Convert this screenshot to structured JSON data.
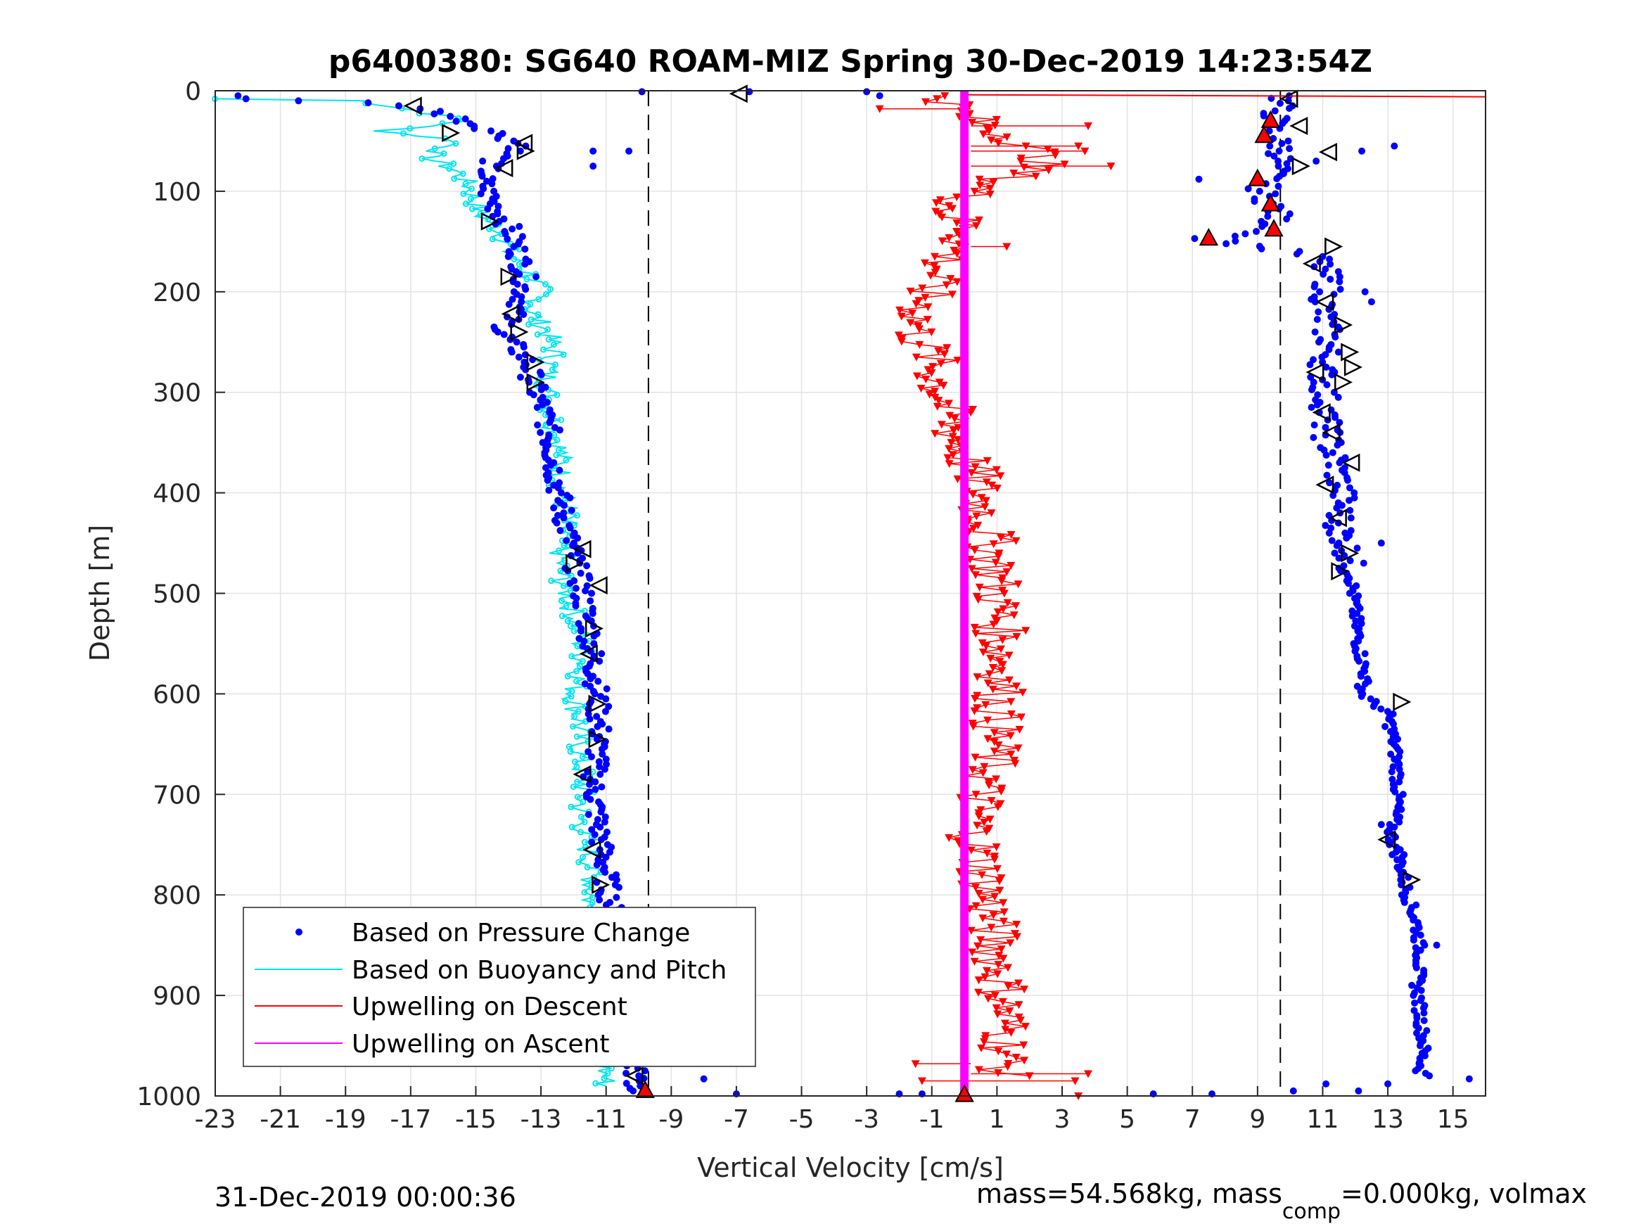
{
  "chart_data": {
    "type": "scatter",
    "title": "p6400380: SG640 ROAM-MIZ Spring 30-Dec-2019 14:23:54Z",
    "xlabel": "Vertical Velocity [cm/s]",
    "ylabel": "Depth [m]",
    "xlim": [
      -23,
      16
    ],
    "ylim": [
      1000,
      0
    ],
    "y_reversed": true,
    "grid": true,
    "xticks": [
      -23,
      -21,
      -19,
      -17,
      -15,
      -13,
      -11,
      -9,
      -7,
      -5,
      -3,
      -1,
      1,
      3,
      5,
      7,
      9,
      11,
      13,
      15
    ],
    "yticks": [
      0,
      100,
      200,
      300,
      400,
      500,
      600,
      700,
      800,
      900,
      1000
    ],
    "vlines": [
      -9.7,
      9.7
    ],
    "legend": {
      "placement": "bottom-left",
      "entries": [
        "Based on Pressure Change",
        "Based on Buoyancy and Pitch",
        "Upwelling on Descent",
        "Upwelling on Ascent"
      ]
    },
    "series": [
      {
        "name": "Based on Pressure Change",
        "color": "#0000ff",
        "profile_descent": [
          [
            -22,
            8
          ],
          [
            -18.5,
            12
          ],
          [
            -16.5,
            18
          ],
          [
            -15.5,
            28
          ],
          [
            -14.5,
            40
          ],
          [
            -13.5,
            55
          ],
          [
            -14.5,
            70
          ],
          [
            -14.8,
            90
          ],
          [
            -14.5,
            110
          ],
          [
            -14,
            135
          ],
          [
            -13.7,
            160
          ],
          [
            -13.5,
            185
          ],
          [
            -13.6,
            210
          ],
          [
            -14.2,
            240
          ],
          [
            -13.4,
            270
          ],
          [
            -13.2,
            295
          ],
          [
            -12.8,
            330
          ],
          [
            -12.6,
            370
          ],
          [
            -12.4,
            410
          ],
          [
            -12.1,
            450
          ],
          [
            -11.8,
            490
          ],
          [
            -11.5,
            540
          ],
          [
            -11.3,
            590
          ],
          [
            -11.2,
            640
          ],
          [
            -11.4,
            690
          ],
          [
            -11.2,
            740
          ],
          [
            -10.9,
            800
          ],
          [
            -10.6,
            860
          ],
          [
            -10.3,
            910
          ],
          [
            -10.2,
            960
          ],
          [
            -10.0,
            995
          ]
        ],
        "profile_ascent": [
          [
            9.8,
            5
          ],
          [
            9.6,
            20
          ],
          [
            9.4,
            40
          ],
          [
            9.8,
            60
          ],
          [
            9.5,
            80
          ],
          [
            9.1,
            100
          ],
          [
            9.6,
            120
          ],
          [
            9.4,
            140
          ],
          [
            7.5,
            147
          ],
          [
            10.8,
            165
          ],
          [
            11.2,
            190
          ],
          [
            11.0,
            220
          ],
          [
            11.2,
            250
          ],
          [
            11.0,
            280
          ],
          [
            11.1,
            310
          ],
          [
            11.1,
            340
          ],
          [
            11.4,
            370
          ],
          [
            11.6,
            400
          ],
          [
            11.5,
            430
          ],
          [
            11.8,
            460
          ],
          [
            11.9,
            490
          ],
          [
            12.0,
            520
          ],
          [
            12.1,
            550
          ],
          [
            12.3,
            580
          ],
          [
            12.2,
            600
          ],
          [
            13.0,
            620
          ],
          [
            13.2,
            650
          ],
          [
            13.3,
            680
          ],
          [
            13.3,
            710
          ],
          [
            13.1,
            740
          ],
          [
            13.4,
            770
          ],
          [
            13.6,
            800
          ],
          [
            13.9,
            830
          ],
          [
            14.0,
            860
          ],
          [
            13.9,
            890
          ],
          [
            14.0,
            920
          ],
          [
            14.1,
            950
          ],
          [
            14.0,
            975
          ],
          [
            14.2,
            980
          ]
        ],
        "outliers": [
          [
            -22.3,
            5
          ],
          [
            -9.9,
            1
          ],
          [
            -6.6,
            1
          ],
          [
            -11.4,
            60
          ],
          [
            -10.3,
            60
          ],
          [
            -11.4,
            75
          ],
          [
            -9.1,
            922
          ],
          [
            -8.4,
            953
          ],
          [
            -8.0,
            983
          ],
          [
            -7.0,
            998
          ],
          [
            -2.0,
            998
          ],
          [
            -1.3,
            998
          ],
          [
            5.8,
            998
          ],
          [
            7.6,
            998
          ],
          [
            10.1,
            995
          ],
          [
            11.1,
            988
          ],
          [
            12.1,
            995
          ],
          [
            13.0,
            988
          ],
          [
            15.5,
            983
          ],
          [
            14.5,
            850
          ],
          [
            -3,
            1
          ],
          [
            -2.6,
            5
          ],
          [
            10.8,
            70
          ],
          [
            12.2,
            60
          ],
          [
            13.2,
            55
          ],
          [
            7.2,
            88
          ],
          [
            12.3,
            200
          ],
          [
            12.5,
            210
          ],
          [
            11.2,
            440
          ],
          [
            12.8,
            450
          ],
          [
            13.5,
            760
          ],
          [
            12.8,
            730
          ]
        ]
      },
      {
        "name": "Based on Buoyancy and Pitch",
        "color": "#00e5ee",
        "profile": [
          [
            -23,
            8
          ],
          [
            -18.5,
            10
          ],
          [
            -16.8,
            20
          ],
          [
            -15.2,
            30
          ],
          [
            -17.8,
            40
          ],
          [
            -15.5,
            50
          ],
          [
            -16.5,
            65
          ],
          [
            -15.6,
            80
          ],
          [
            -15.2,
            95
          ],
          [
            -15.0,
            110
          ],
          [
            -14.8,
            125
          ],
          [
            -14.2,
            140
          ],
          [
            -14.0,
            160
          ],
          [
            -13.4,
            180
          ],
          [
            -13.0,
            200
          ],
          [
            -13.3,
            220
          ],
          [
            -12.8,
            240
          ],
          [
            -12.6,
            260
          ],
          [
            -12.8,
            280
          ],
          [
            -12.8,
            300
          ],
          [
            -12.6,
            330
          ],
          [
            -12.4,
            360
          ],
          [
            -12.4,
            390
          ],
          [
            -12.2,
            420
          ],
          [
            -12.4,
            450
          ],
          [
            -12.4,
            480
          ],
          [
            -12.1,
            510
          ],
          [
            -11.8,
            540
          ],
          [
            -11.7,
            570
          ],
          [
            -12.0,
            600
          ],
          [
            -11.8,
            630
          ],
          [
            -11.8,
            660
          ],
          [
            -11.7,
            690
          ],
          [
            -11.8,
            720
          ],
          [
            -11.6,
            750
          ],
          [
            -11.4,
            780
          ],
          [
            -11.5,
            810
          ],
          [
            -11.4,
            840
          ],
          [
            -11.2,
            870
          ],
          [
            -11.2,
            900
          ],
          [
            -11.3,
            930
          ],
          [
            -11.1,
            960
          ],
          [
            -11.0,
            990
          ]
        ]
      },
      {
        "name": "Upwelling on Descent",
        "color": "#ff0000",
        "profile": [
          [
            -0.5,
            5
          ],
          [
            -0.3,
            20
          ],
          [
            1,
            40
          ],
          [
            2,
            55
          ],
          [
            2.5,
            70
          ],
          [
            1.5,
            85
          ],
          [
            0.3,
            100
          ],
          [
            -0.5,
            120
          ],
          [
            0.2,
            140
          ],
          [
            -0.5,
            165
          ],
          [
            -1,
            190
          ],
          [
            -1.3,
            215
          ],
          [
            -1.5,
            240
          ],
          [
            -1.0,
            265
          ],
          [
            -0.8,
            290
          ],
          [
            -0.5,
            320
          ],
          [
            -0.2,
            350
          ],
          [
            0.3,
            380
          ],
          [
            0.6,
            420
          ],
          [
            0.9,
            460
          ],
          [
            1.0,
            500
          ],
          [
            1.1,
            540
          ],
          [
            1.2,
            580
          ],
          [
            1.0,
            620
          ],
          [
            0.9,
            660
          ],
          [
            0.5,
            700
          ],
          [
            0.3,
            740
          ],
          [
            0.6,
            780
          ],
          [
            0.8,
            820
          ],
          [
            1.0,
            860
          ],
          [
            1.2,
            900
          ],
          [
            1.3,
            940
          ],
          [
            1.2,
            980
          ]
        ],
        "spikes": [
          [
            -2.6,
            18
          ],
          [
            3.8,
            35
          ],
          [
            3.5,
            55
          ],
          [
            4.5,
            75
          ],
          [
            3.7,
            60
          ],
          [
            1.3,
            155
          ],
          [
            -1.5,
            968
          ],
          [
            3.8,
            978
          ],
          [
            3.5,
            1000
          ],
          [
            3.4,
            985
          ],
          [
            -1.3,
            985
          ]
        ]
      },
      {
        "name": "Upwelling on Ascent",
        "color": "#ff00ff",
        "x": 0.0,
        "depth_range": [
          0,
          1000
        ]
      }
    ],
    "markers_right_triangle": [
      [
        -13.5,
        60
      ],
      [
        -15.8,
        42
      ],
      [
        -14.6,
        130
      ],
      [
        -14.0,
        185
      ],
      [
        -13.7,
        240
      ],
      [
        -13.2,
        270
      ],
      [
        -13.2,
        290
      ],
      [
        -12.0,
        470
      ],
      [
        -11.4,
        535
      ],
      [
        -11.3,
        610
      ],
      [
        -11.3,
        645
      ],
      [
        -11.2,
        790
      ],
      [
        -11.0,
        850
      ],
      [
        -10.2,
        917
      ],
      [
        -10.2,
        950
      ],
      [
        10.3,
        75
      ],
      [
        11.3,
        155
      ],
      [
        11.6,
        233
      ],
      [
        11.8,
        260
      ],
      [
        11.9,
        275
      ],
      [
        11.6,
        290
      ],
      [
        11.8,
        460
      ],
      [
        11.5,
        478
      ],
      [
        13.7,
        785
      ],
      [
        13.4,
        608
      ]
    ],
    "markers_left_triangle": [
      [
        -16.9,
        15
      ],
      [
        -13.5,
        52
      ],
      [
        -14.1,
        77
      ],
      [
        -13.9,
        222
      ],
      [
        -11.7,
        456
      ],
      [
        -11.2,
        492
      ],
      [
        -11.5,
        560
      ],
      [
        -11.7,
        680
      ],
      [
        -11.4,
        755
      ],
      [
        -11.2,
        822
      ],
      [
        -10.1,
        980
      ],
      [
        -6.9,
        3
      ],
      [
        10.0,
        8
      ],
      [
        10.3,
        35
      ],
      [
        11.2,
        61
      ],
      [
        10.7,
        172
      ],
      [
        11.1,
        210
      ],
      [
        10.8,
        280
      ],
      [
        11.0,
        320
      ],
      [
        11.3,
        340
      ],
      [
        11.1,
        392
      ],
      [
        11.5,
        425
      ],
      [
        11.9,
        370
      ],
      [
        13.0,
        745
      ]
    ],
    "markers_red_triangle": [
      [
        9.4,
        30
      ],
      [
        9.2,
        45
      ],
      [
        9.0,
        88
      ],
      [
        9.4,
        113
      ],
      [
        9.5,
        138
      ],
      [
        7.5,
        147
      ],
      [
        -9.8,
        995
      ],
      [
        0,
        999
      ]
    ],
    "footer_left": "31-Dec-2019 00:00:36",
    "footer_right_parts": [
      "mass=54.568kg, mass",
      "comp",
      "=0.000kg, volmax"
    ]
  }
}
